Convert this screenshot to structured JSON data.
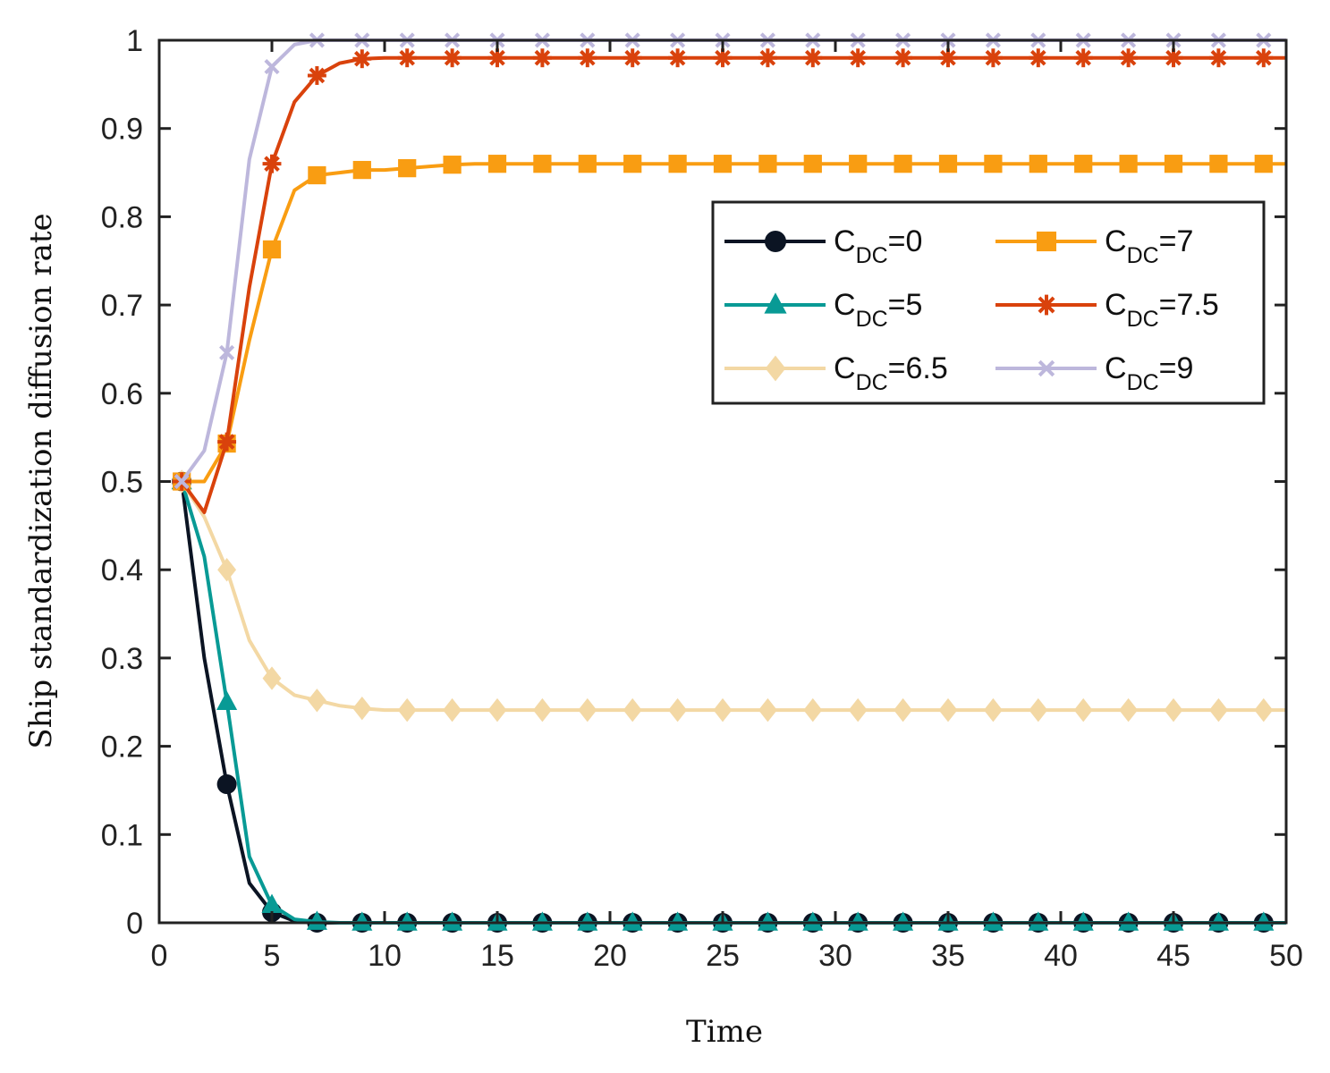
{
  "chart_data": {
    "type": "line",
    "title": "",
    "xlabel": "Time",
    "ylabel": "Ship standardization diffusion rate",
    "xlim": [
      0,
      50
    ],
    "ylim": [
      0,
      1
    ],
    "xticks": [
      "0",
      "5",
      "10",
      "15",
      "20",
      "25",
      "30",
      "35",
      "40",
      "45",
      "50"
    ],
    "yticks": [
      "0",
      "0.1",
      "0.2",
      "0.3",
      "0.4",
      "0.5",
      "0.6",
      "0.7",
      "0.8",
      "0.9",
      "1"
    ],
    "grid": false,
    "legend_position": "top-right",
    "legend_columns": 2,
    "x": [
      1,
      2,
      3,
      4,
      5,
      6,
      7,
      8,
      9,
      10,
      11,
      12,
      13,
      14,
      15,
      16,
      17,
      18,
      19,
      20,
      21,
      22,
      23,
      24,
      25,
      26,
      27,
      28,
      29,
      30,
      31,
      32,
      33,
      34,
      35,
      36,
      37,
      38,
      39,
      40,
      41,
      42,
      43,
      44,
      45,
      46,
      47,
      48,
      49,
      50
    ],
    "marker_x": [
      1,
      3,
      5,
      7,
      9,
      11,
      13,
      15,
      17,
      19,
      21,
      23,
      25,
      27,
      29,
      31,
      33,
      35,
      37,
      39,
      41,
      43,
      45,
      47,
      49
    ],
    "series": [
      {
        "name_main": "C",
        "name_sub": "DC",
        "name_tail": "=0",
        "color": "#0b1423",
        "marker": "circle",
        "values": [
          0.5,
          0.3,
          0.157,
          0.045,
          0.012,
          0.002,
          0,
          0,
          0,
          0,
          0,
          0,
          0,
          0,
          0,
          0,
          0,
          0,
          0,
          0,
          0,
          0,
          0,
          0,
          0,
          0,
          0,
          0,
          0,
          0,
          0,
          0,
          0,
          0,
          0,
          0,
          0,
          0,
          0,
          0,
          0,
          0,
          0,
          0,
          0,
          0,
          0,
          0,
          0,
          0
        ]
      },
      {
        "name_main": "C",
        "name_sub": "DC",
        "name_tail": "=5",
        "color": "#089a95",
        "marker": "triangle",
        "values": [
          0.5,
          0.415,
          0.25,
          0.075,
          0.02,
          0.004,
          0.001,
          0,
          0,
          0,
          0,
          0,
          0,
          0,
          0,
          0,
          0,
          0,
          0,
          0,
          0,
          0,
          0,
          0,
          0,
          0,
          0,
          0,
          0,
          0,
          0,
          0,
          0,
          0,
          0,
          0,
          0,
          0,
          0,
          0,
          0,
          0,
          0,
          0,
          0,
          0,
          0,
          0,
          0,
          0
        ]
      },
      {
        "name_main": "C",
        "name_sub": "DC",
        "name_tail": "=6.5",
        "color": "#f3d8a4",
        "marker": "diamond",
        "values": [
          0.5,
          0.46,
          0.4,
          0.32,
          0.277,
          0.258,
          0.252,
          0.246,
          0.243,
          0.241,
          0.241,
          0.241,
          0.241,
          0.241,
          0.241,
          0.241,
          0.241,
          0.241,
          0.241,
          0.241,
          0.241,
          0.241,
          0.241,
          0.241,
          0.241,
          0.241,
          0.241,
          0.241,
          0.241,
          0.241,
          0.241,
          0.241,
          0.241,
          0.241,
          0.241,
          0.241,
          0.241,
          0.241,
          0.241,
          0.241,
          0.241,
          0.241,
          0.241,
          0.241,
          0.241,
          0.241,
          0.241,
          0.241,
          0.241,
          0.241
        ]
      },
      {
        "name_main": "C",
        "name_sub": "DC",
        "name_tail": "=7",
        "color": "#f99d12",
        "marker": "square",
        "values": [
          0.5,
          0.5,
          0.543,
          0.66,
          0.763,
          0.83,
          0.847,
          0.85,
          0.853,
          0.853,
          0.855,
          0.857,
          0.859,
          0.86,
          0.86,
          0.86,
          0.86,
          0.86,
          0.86,
          0.86,
          0.86,
          0.86,
          0.86,
          0.86,
          0.86,
          0.86,
          0.86,
          0.86,
          0.86,
          0.86,
          0.86,
          0.86,
          0.86,
          0.86,
          0.86,
          0.86,
          0.86,
          0.86,
          0.86,
          0.86,
          0.86,
          0.86,
          0.86,
          0.86,
          0.86,
          0.86,
          0.86,
          0.86,
          0.86,
          0.86
        ]
      },
      {
        "name_main": "C",
        "name_sub": "DC",
        "name_tail": "=7.5",
        "color": "#d9420c",
        "marker": "asterisk",
        "values": [
          0.5,
          0.465,
          0.545,
          0.72,
          0.86,
          0.93,
          0.96,
          0.974,
          0.979,
          0.98,
          0.98,
          0.98,
          0.98,
          0.98,
          0.98,
          0.98,
          0.98,
          0.98,
          0.98,
          0.98,
          0.98,
          0.98,
          0.98,
          0.98,
          0.98,
          0.98,
          0.98,
          0.98,
          0.98,
          0.98,
          0.98,
          0.98,
          0.98,
          0.98,
          0.98,
          0.98,
          0.98,
          0.98,
          0.98,
          0.98,
          0.98,
          0.98,
          0.98,
          0.98,
          0.98,
          0.98,
          0.98,
          0.98,
          0.98,
          0.98
        ]
      },
      {
        "name_main": "C",
        "name_sub": "DC",
        "name_tail": "=9",
        "color": "#bdb7dc",
        "marker": "x",
        "values": [
          0.5,
          0.535,
          0.646,
          0.865,
          0.97,
          0.995,
          1,
          1,
          1,
          1,
          1,
          1,
          1,
          1,
          1,
          1,
          1,
          1,
          1,
          1,
          1,
          1,
          1,
          1,
          1,
          1,
          1,
          1,
          1,
          1,
          1,
          1,
          1,
          1,
          1,
          1,
          1,
          1,
          1,
          1,
          1,
          1,
          1,
          1,
          1,
          1,
          1,
          1,
          1,
          1
        ]
      }
    ]
  }
}
